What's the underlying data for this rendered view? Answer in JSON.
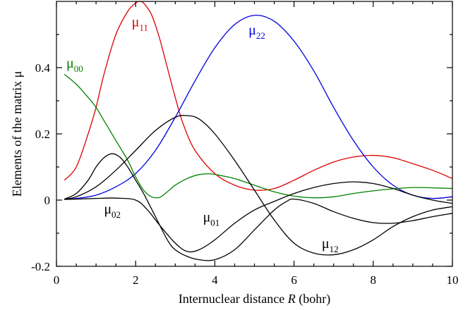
{
  "chart_data": {
    "type": "line",
    "title": "",
    "xlabel": "Internuclear distance R (bohr)",
    "xlabel_parts": [
      "Internuclear distance ",
      "R",
      " (bohr)"
    ],
    "ylabel": "Elements of the matrix μ",
    "xlim": [
      0,
      10
    ],
    "ylim": [
      -0.2,
      0.6
    ],
    "xticks": [
      0,
      2,
      4,
      6,
      8,
      10
    ],
    "xtick_labels": [
      "0",
      "2",
      "4",
      "6",
      "8",
      "10"
    ],
    "yticks": [
      -0.2,
      0,
      0.2,
      0.4
    ],
    "ytick_labels": [
      "-0.2",
      "0",
      "0.2",
      "0.4"
    ],
    "grid": false,
    "legend": "none (inline labels)",
    "series": [
      {
        "name": "μ11",
        "label_main": "μ",
        "label_sub": "11",
        "color": "#e00000",
        "x": [
          0.2,
          0.5,
          0.8,
          1.0,
          1.2,
          1.5,
          1.8,
          2.0,
          2.1,
          2.2,
          2.4,
          2.6,
          2.8,
          3.0,
          3.2,
          3.5,
          4.0,
          4.5,
          5.0,
          5.5,
          6.0,
          6.5,
          7.0,
          7.5,
          8.0,
          8.5,
          9.0,
          9.5,
          10.0
        ],
        "y": [
          0.06,
          0.1,
          0.2,
          0.28,
          0.38,
          0.5,
          0.57,
          0.595,
          0.6,
          0.595,
          0.56,
          0.49,
          0.4,
          0.31,
          0.23,
          0.15,
          0.08,
          0.045,
          0.03,
          0.035,
          0.06,
          0.09,
          0.115,
          0.13,
          0.135,
          0.128,
          0.11,
          0.09,
          0.065
        ]
      },
      {
        "name": "μ22",
        "label_main": "μ",
        "label_sub": "22",
        "color": "#0000e0",
        "x": [
          0.2,
          0.5,
          1.0,
          1.5,
          2.0,
          2.5,
          3.0,
          3.5,
          4.0,
          4.5,
          5.0,
          5.5,
          6.0,
          6.5,
          7.0,
          7.5,
          8.0,
          8.5,
          9.0,
          9.5,
          10.0
        ],
        "y": [
          0.003,
          0.005,
          0.015,
          0.04,
          0.08,
          0.15,
          0.25,
          0.36,
          0.46,
          0.53,
          0.558,
          0.54,
          0.48,
          0.39,
          0.28,
          0.18,
          0.1,
          0.045,
          0.015,
          0.005,
          0.01
        ]
      },
      {
        "name": "μ00",
        "label_main": "μ",
        "label_sub": "00",
        "color": "#008000",
        "x": [
          0.2,
          0.5,
          0.8,
          1.0,
          1.2,
          1.5,
          1.8,
          2.0,
          2.2,
          2.4,
          2.6,
          2.8,
          3.0,
          3.3,
          3.6,
          3.9,
          4.2,
          4.5,
          5.0,
          5.5,
          6.0,
          6.5,
          7.0,
          7.5,
          8.0,
          8.5,
          9.0,
          9.5,
          10.0
        ],
        "y": [
          0.38,
          0.35,
          0.31,
          0.28,
          0.24,
          0.18,
          0.12,
          0.07,
          0.03,
          0.01,
          0.008,
          0.025,
          0.045,
          0.065,
          0.077,
          0.079,
          0.073,
          0.065,
          0.045,
          0.025,
          0.012,
          0.007,
          0.01,
          0.02,
          0.028,
          0.034,
          0.038,
          0.037,
          0.035
        ]
      },
      {
        "name": "μ02",
        "label_main": "μ",
        "label_sub": "02",
        "color": "#000000",
        "x": [
          0.2,
          0.5,
          1.0,
          1.5,
          2.0,
          2.3,
          2.6,
          3.0,
          3.3,
          3.6,
          4.0,
          4.5,
          5.0,
          5.5,
          6.0,
          6.5,
          7.0,
          7.5,
          8.0,
          8.5,
          9.0,
          9.5,
          10.0
        ],
        "y": [
          0.002,
          0.003,
          0.005,
          0.006,
          0.0,
          -0.03,
          -0.075,
          -0.13,
          -0.155,
          -0.15,
          -0.12,
          -0.07,
          -0.03,
          -0.004,
          0.02,
          0.038,
          0.05,
          0.055,
          0.05,
          0.035,
          0.015,
          0.0,
          -0.01
        ]
      },
      {
        "name": "μ01",
        "label_main": "μ",
        "label_sub": "01",
        "color": "#000000",
        "x": [
          0.2,
          0.5,
          0.8,
          1.0,
          1.2,
          1.4,
          1.6,
          1.8,
          2.0,
          2.2,
          2.5,
          2.8,
          3.0,
          3.3,
          3.6,
          4.0,
          4.5,
          5.0,
          5.5,
          5.8,
          6.0,
          6.5,
          7.0,
          7.5,
          8.0,
          8.5,
          9.0,
          9.5,
          10.0
        ],
        "y": [
          0.003,
          0.02,
          0.06,
          0.1,
          0.128,
          0.14,
          0.13,
          0.1,
          0.06,
          0.02,
          -0.05,
          -0.12,
          -0.15,
          -0.17,
          -0.18,
          -0.18,
          -0.15,
          -0.09,
          -0.03,
          -0.005,
          0.003,
          -0.01,
          -0.035,
          -0.055,
          -0.068,
          -0.07,
          -0.062,
          -0.05,
          -0.04
        ]
      },
      {
        "name": "μ12",
        "label_main": "μ",
        "label_sub": "12",
        "color": "#000000",
        "x": [
          0.2,
          0.5,
          1.0,
          1.5,
          2.0,
          2.5,
          3.0,
          3.3,
          3.6,
          4.0,
          4.5,
          5.0,
          5.5,
          6.0,
          6.5,
          7.0,
          7.5,
          8.0,
          8.5,
          9.0,
          9.5,
          10.0
        ],
        "y": [
          0.003,
          0.01,
          0.04,
          0.09,
          0.15,
          0.21,
          0.25,
          0.255,
          0.245,
          0.2,
          0.12,
          0.03,
          -0.06,
          -0.13,
          -0.16,
          -0.165,
          -0.15,
          -0.12,
          -0.08,
          -0.05,
          -0.03,
          -0.02
        ]
      }
    ],
    "annotations": [
      {
        "series": "μ11",
        "main": "μ",
        "sub": "11",
        "color": "#e00000",
        "x": 1.9,
        "y": 0.525
      },
      {
        "series": "μ22",
        "main": "μ",
        "sub": "22",
        "color": "#0000e0",
        "x": 4.85,
        "y": 0.5
      },
      {
        "series": "μ00",
        "main": "μ",
        "sub": "00",
        "color": "#008000",
        "x": 0.25,
        "y": 0.4
      },
      {
        "series": "μ02",
        "main": "μ",
        "sub": "02",
        "color": "#000000",
        "x": 1.2,
        "y": -0.04
      },
      {
        "series": "μ01",
        "main": "μ",
        "sub": "01",
        "color": "#000000",
        "x": 3.7,
        "y": -0.065
      },
      {
        "series": "μ12",
        "main": "μ",
        "sub": "12",
        "color": "#000000",
        "x": 6.7,
        "y": -0.145
      }
    ]
  }
}
